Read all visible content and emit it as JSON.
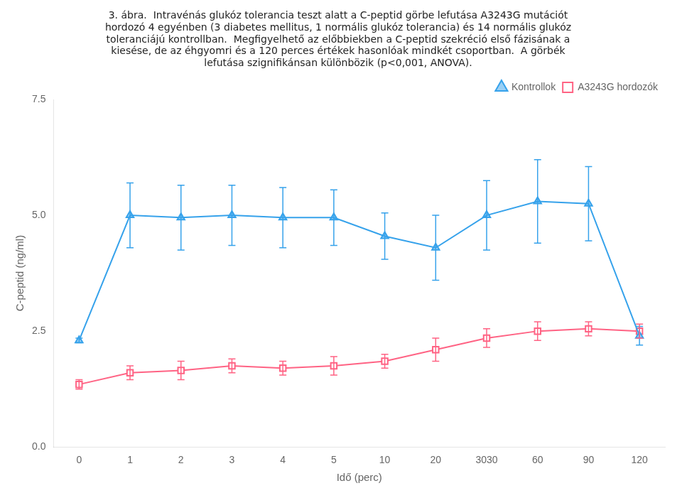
{
  "chart_data": {
    "type": "line",
    "title": [
      "3. ábra.  Intravénás glukóz tolerancia teszt alatt a C-peptid görbe lefutása A3243G mutációt",
      "hordozó 4 egyénben (3 diabetes mellitus, 1 normális glukóz tolerancia) és 14 normális glukóz",
      "toleranciájú kontrollban.  Megfigyelhető az előbbiekben a C-peptid szekréció első fázisának a",
      "kiesése, de az éhgyomri és a 120 perces értékek hasonlóak mindkét csoportban.  A görbék",
      "lefutása szignifikánsan különbözik (p<0,001, ANOVA)."
    ],
    "xlabel": "Idő (perc)",
    "ylabel": "C-peptid (ng/ml)",
    "categories": [
      "0",
      "1",
      "2",
      "3",
      "4",
      "5",
      "10",
      "20",
      "3030",
      "60",
      "90",
      "120"
    ],
    "series": [
      {
        "name": "Kontrollok",
        "marker": "triangle",
        "line_style": "solid",
        "values": [
          2.3,
          5.0,
          4.95,
          5.0,
          4.95,
          4.95,
          4.55,
          4.3,
          5.0,
          5.3,
          5.25,
          2.4
        ],
        "errors": [
          0.05,
          0.7,
          0.7,
          0.65,
          0.65,
          0.6,
          0.5,
          0.7,
          0.75,
          0.9,
          0.8,
          0.2
        ]
      },
      {
        "name": "A3243G hordozók",
        "marker": "open square",
        "line_style": "solid",
        "values": [
          1.35,
          1.6,
          1.65,
          1.75,
          1.7,
          1.75,
          1.85,
          2.1,
          2.35,
          2.5,
          2.55,
          2.5
        ],
        "errors": [
          0.1,
          0.15,
          0.2,
          0.15,
          0.15,
          0.2,
          0.15,
          0.25,
          0.2,
          0.2,
          0.15,
          0.15
        ]
      }
    ],
    "ylim": [
      0.0,
      7.5
    ],
    "yticks": [
      {
        "value": 0,
        "label": "0.0"
      },
      2.5,
      {
        "value": 5,
        "label": "5.0"
      },
      7.5
    ],
    "grid": false,
    "legend": "upper right"
  }
}
